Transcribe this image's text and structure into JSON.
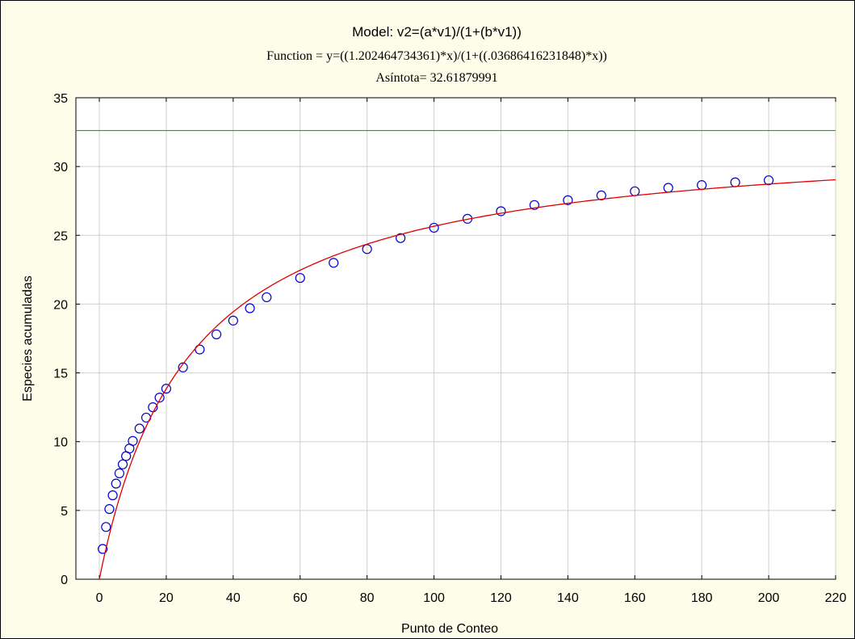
{
  "chart_data": {
    "type": "scatter",
    "title": "Model: v2=(a*v1)/(1+(b*v1))",
    "subtitle": "Function = y=((1.202464734361)*x)/(1+((.03686416231848)*x))",
    "annotation": "Asíntota= 32.61879991",
    "xlabel": "Punto de Conteo",
    "ylabel": "Especies acumuladas",
    "xlim": [
      -7,
      220
    ],
    "ylim": [
      0,
      35
    ],
    "xticks": [
      0,
      20,
      40,
      60,
      80,
      100,
      120,
      140,
      160,
      180,
      200,
      220
    ],
    "yticks": [
      0,
      5,
      10,
      15,
      20,
      25,
      30,
      35
    ],
    "grid": true,
    "model": {
      "a": 1.202464734361,
      "b": 0.03686416231848,
      "x_range": [
        0,
        220
      ]
    },
    "asymptote": 32.61879991,
    "series": [
      {
        "marker": "circle-open",
        "color": "#0000cc",
        "x": [
          1,
          2,
          3,
          4,
          5,
          6,
          7,
          8,
          9,
          10,
          12,
          14,
          16,
          18,
          20,
          25,
          30,
          35,
          40,
          45,
          50,
          60,
          70,
          80,
          90,
          100,
          110,
          120,
          130,
          140,
          150,
          160,
          170,
          180,
          190,
          200
        ],
        "y": [
          2.2,
          3.8,
          5.1,
          6.1,
          6.95,
          7.7,
          8.35,
          8.95,
          9.5,
          10.05,
          10.95,
          11.75,
          12.5,
          13.2,
          13.85,
          15.4,
          16.7,
          17.8,
          18.8,
          19.7,
          20.5,
          21.9,
          23.0,
          24.0,
          24.8,
          25.55,
          26.2,
          26.75,
          27.2,
          27.55,
          27.9,
          28.2,
          28.45,
          28.65,
          28.85,
          29.0
        ]
      }
    ],
    "colors": {
      "points": "#0000cc",
      "fit": "#e00000",
      "asymptote": "#00bb00",
      "grid": "#d0d0d0",
      "plot_bg": "#ffffff",
      "page_bg": "#fdfde9"
    }
  }
}
